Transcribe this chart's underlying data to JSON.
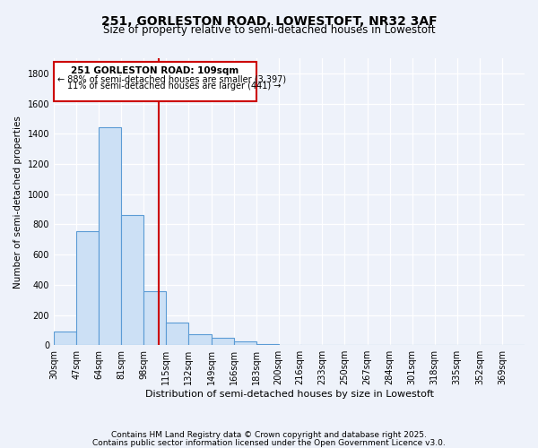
{
  "title": "251, GORLESTON ROAD, LOWESTOFT, NR32 3AF",
  "subtitle": "Size of property relative to semi-detached houses in Lowestoft",
  "xlabel": "Distribution of semi-detached houses by size in Lowestoft",
  "ylabel": "Number of semi-detached properties",
  "bar_values": [
    90,
    755,
    1445,
    860,
    355,
    150,
    75,
    50,
    25,
    10,
    0,
    0,
    0,
    0,
    0,
    0,
    0,
    0,
    0,
    0,
    0
  ],
  "bin_labels": [
    "30sqm",
    "47sqm",
    "64sqm",
    "81sqm",
    "98sqm",
    "115sqm",
    "132sqm",
    "149sqm",
    "166sqm",
    "183sqm",
    "200sqm",
    "216sqm",
    "233sqm",
    "250sqm",
    "267sqm",
    "284sqm",
    "301sqm",
    "318sqm",
    "335sqm",
    "352sqm",
    "369sqm"
  ],
  "bin_edges": [
    30,
    47,
    64,
    81,
    98,
    115,
    132,
    149,
    166,
    183,
    200,
    216,
    233,
    250,
    267,
    284,
    301,
    318,
    335,
    352,
    369
  ],
  "bin_width": 17,
  "bar_color": "#cce0f5",
  "bar_edge_color": "#5b9bd5",
  "vline_x": 109,
  "vline_color": "#cc0000",
  "annotation_title": "251 GORLESTON ROAD: 109sqm",
  "annotation_smaller": "← 88% of semi-detached houses are smaller (3,397)",
  "annotation_larger": "11% of semi-detached houses are larger (441) →",
  "box_color": "#cc0000",
  "ylim": [
    0,
    1900
  ],
  "yticks": [
    0,
    200,
    400,
    600,
    800,
    1000,
    1200,
    1400,
    1600,
    1800
  ],
  "footer1": "Contains HM Land Registry data © Crown copyright and database right 2025.",
  "footer2": "Contains public sector information licensed under the Open Government Licence v3.0.",
  "bg_color": "#eef2fa",
  "grid_color": "#ffffff",
  "title_fontsize": 10,
  "subtitle_fontsize": 8.5,
  "xlabel_fontsize": 8,
  "ylabel_fontsize": 7.5,
  "tick_fontsize": 7,
  "footer_fontsize": 6.5
}
